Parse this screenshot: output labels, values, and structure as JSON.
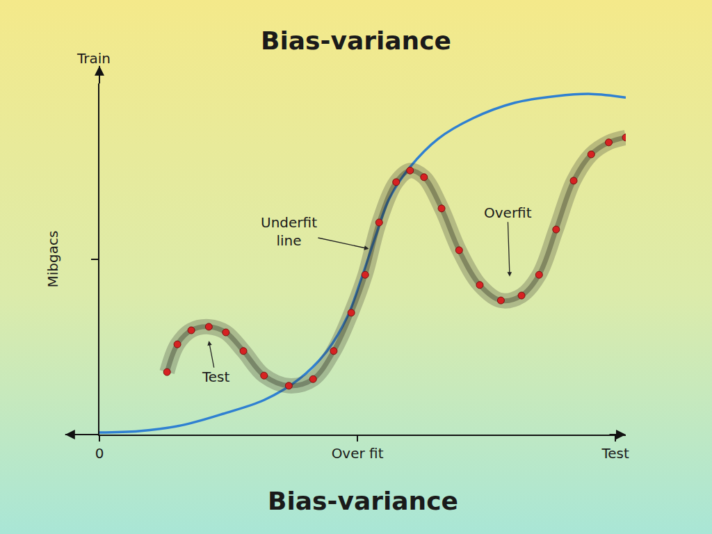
{
  "chart_data": {
    "type": "line",
    "title": "Bias-variance",
    "caption": "Bias-variance",
    "ylabel": "Mibgacs",
    "ylabel_top": "Train",
    "xlim": [
      0,
      10.2
    ],
    "xticks": [
      {
        "value": 0,
        "label": "0"
      },
      {
        "value": 5,
        "label": "Over fit"
      },
      {
        "value": 10,
        "label": "Test"
      }
    ],
    "ylim": [
      0,
      10
    ],
    "yticks": [
      5
    ],
    "tick_labels": "x",
    "grid": false,
    "series": [
      {
        "type": "line",
        "color": "#2f80d1",
        "line_style": "solid",
        "x": [
          0,
          0.77,
          1.58,
          2.39,
          3.2,
          3.87,
          4.41,
          4.81,
          5.08,
          5.35,
          5.62,
          6.02,
          6.56,
          7.24,
          8.05,
          8.85,
          9.53,
          10.2
        ],
        "values": [
          0.06,
          0.1,
          0.26,
          0.59,
          0.99,
          1.58,
          2.38,
          3.37,
          4.46,
          5.64,
          6.73,
          7.62,
          8.42,
          9.01,
          9.45,
          9.64,
          9.7,
          9.6
        ]
      },
      {
        "type": "scatter",
        "color": "#d62222",
        "marker": "circle",
        "x": [
          1.31,
          1.51,
          1.78,
          2.12,
          2.45,
          2.79,
          3.19,
          3.67,
          4.14,
          4.54,
          4.88,
          5.15,
          5.42,
          5.75,
          6.02,
          6.29,
          6.63,
          6.97,
          7.37,
          7.78,
          8.18,
          8.52,
          8.85,
          9.19,
          9.53,
          9.87,
          10.2
        ],
        "values": [
          1.78,
          2.57,
          2.97,
          3.07,
          2.91,
          2.38,
          1.68,
          1.39,
          1.58,
          2.38,
          3.47,
          4.55,
          6.04,
          7.19,
          7.52,
          7.33,
          6.44,
          5.25,
          4.26,
          3.82,
          3.96,
          4.55,
          5.84,
          7.23,
          7.98,
          8.32,
          8.46
        ]
      }
    ],
    "annotations": [
      {
        "text": "Underfit\nline",
        "x": 5.22,
        "y": 5.29
      },
      {
        "text": "Overfit",
        "x": 7.95,
        "y": 4.5
      },
      {
        "text": "Test",
        "x": 2.12,
        "y": 2.67
      }
    ]
  }
}
